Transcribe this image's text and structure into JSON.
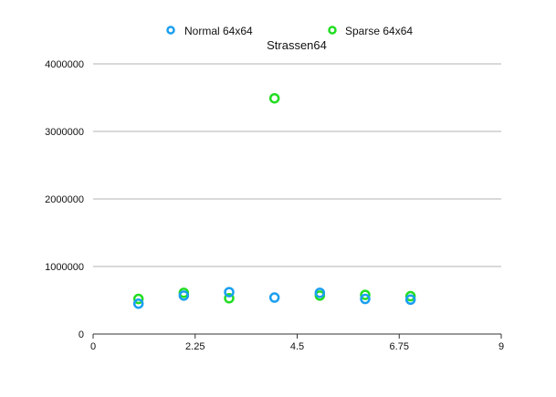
{
  "chart_data": {
    "type": "scatter",
    "title": "Strassen64",
    "xlabel": "",
    "ylabel": "",
    "xlim": [
      0,
      9
    ],
    "ylim": [
      0,
      4000000
    ],
    "x_ticks": [
      0,
      2.25,
      4.5,
      6.75,
      9
    ],
    "x_tick_labels": [
      "0",
      "2.25",
      "4.5",
      "6.75",
      "9"
    ],
    "y_ticks": [
      0,
      1000000,
      2000000,
      3000000,
      4000000
    ],
    "y_tick_labels": [
      "0",
      "1000000",
      "2000000",
      "3000000",
      "4000000"
    ],
    "grid": "horizontal",
    "legend_position": "top",
    "series": [
      {
        "name": "Normal 64x64",
        "color": "#1a9ff0",
        "x": [
          1,
          2,
          3,
          4,
          5,
          6,
          7
        ],
        "y": [
          450000,
          570000,
          620000,
          540000,
          610000,
          520000,
          510000
        ]
      },
      {
        "name": "Sparse 64x64",
        "color": "#22dd22",
        "x": [
          1,
          2,
          3,
          4,
          5,
          6,
          7
        ],
        "y": [
          520000,
          610000,
          530000,
          3490000,
          570000,
          580000,
          560000
        ]
      }
    ]
  }
}
